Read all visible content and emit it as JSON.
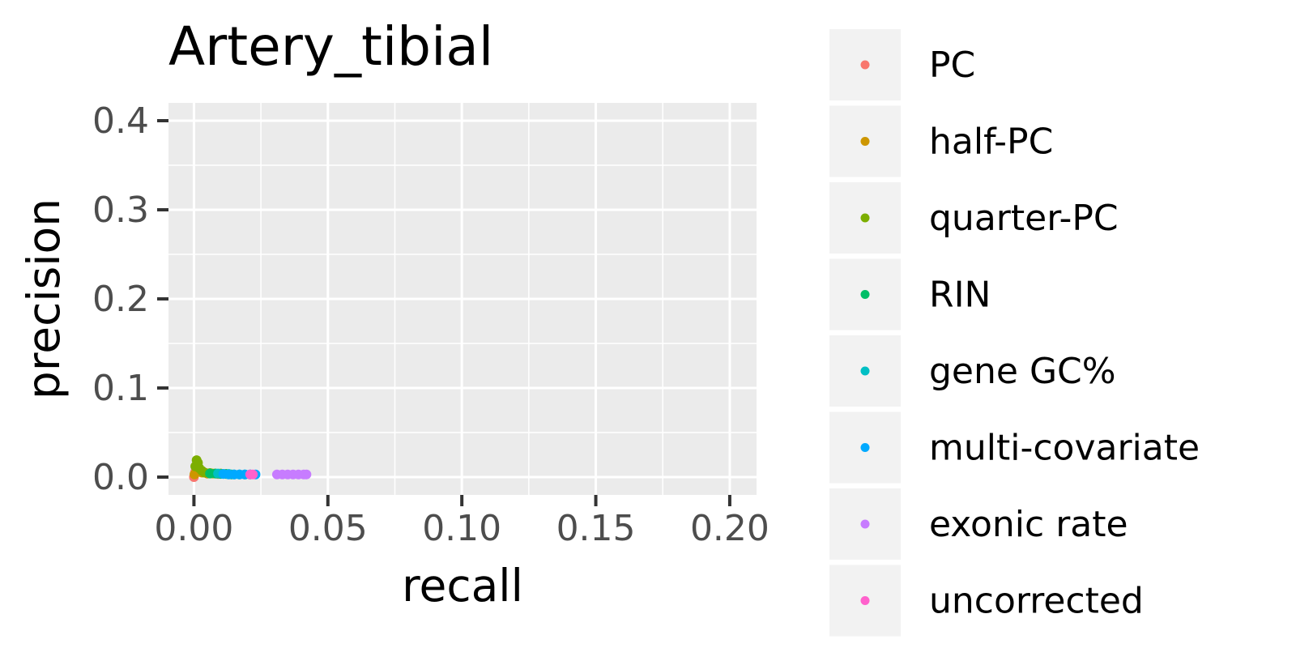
{
  "chart_data": {
    "type": "scatter",
    "title": "Artery_tibial",
    "xlabel": "recall",
    "ylabel": "precision",
    "xlim": [
      -0.0095,
      0.21
    ],
    "ylim": [
      -0.02,
      0.42
    ],
    "x_ticks": [
      0.0,
      0.05,
      0.1,
      0.15,
      0.2
    ],
    "x_tick_labels": [
      "0.00",
      "0.05",
      "0.10",
      "0.15",
      "0.20"
    ],
    "y_ticks": [
      0.0,
      0.1,
      0.2,
      0.3,
      0.4
    ],
    "y_tick_labels": [
      "0.0",
      "0.1",
      "0.2",
      "0.3",
      "0.4"
    ],
    "grid": true,
    "legend_position": "right",
    "series": [
      {
        "name": "PC",
        "color": "#F8766D",
        "points": [
          [
            0.0,
            0.0
          ],
          [
            0.0003,
            0.004
          ],
          [
            0.0005,
            0.006
          ],
          [
            0.0008,
            0.009
          ],
          [
            0.001,
            0.011
          ],
          [
            0.0015,
            0.009
          ],
          [
            0.002,
            0.007
          ],
          [
            0.003,
            0.006
          ],
          [
            0.004,
            0.005
          ],
          [
            0.005,
            0.004
          ]
        ]
      },
      {
        "name": "half-PC",
        "color": "#CD9600",
        "points": [
          [
            0.0002,
            0.003
          ],
          [
            0.001,
            0.007
          ],
          [
            0.002,
            0.006
          ],
          [
            0.003,
            0.005
          ],
          [
            0.005,
            0.004
          ],
          [
            0.007,
            0.004
          ],
          [
            0.009,
            0.0035
          ]
        ]
      },
      {
        "name": "quarter-PC",
        "color": "#7CAE00",
        "points": [
          [
            0.0005,
            0.012
          ],
          [
            0.001,
            0.019
          ],
          [
            0.0015,
            0.016
          ],
          [
            0.002,
            0.01
          ],
          [
            0.003,
            0.007
          ],
          [
            0.004,
            0.005
          ],
          [
            0.006,
            0.0045
          ],
          [
            0.008,
            0.004
          ],
          [
            0.01,
            0.004
          ],
          [
            0.012,
            0.0035
          ]
        ]
      },
      {
        "name": "RIN",
        "color": "#00BE67",
        "points": [
          [
            0.006,
            0.004
          ],
          [
            0.008,
            0.004
          ],
          [
            0.01,
            0.0035
          ],
          [
            0.012,
            0.0035
          ],
          [
            0.014,
            0.003
          ]
        ]
      },
      {
        "name": "gene GC%",
        "color": "#00BFC4",
        "points": [
          [
            0.009,
            0.004
          ],
          [
            0.011,
            0.0035
          ],
          [
            0.013,
            0.0035
          ],
          [
            0.015,
            0.003
          ],
          [
            0.017,
            0.003
          ],
          [
            0.019,
            0.003
          ],
          [
            0.021,
            0.003
          ]
        ]
      },
      {
        "name": "multi-covariate",
        "color": "#00A9FF",
        "points": [
          [
            0.011,
            0.0035
          ],
          [
            0.013,
            0.003
          ],
          [
            0.015,
            0.003
          ],
          [
            0.017,
            0.003
          ],
          [
            0.019,
            0.003
          ],
          [
            0.021,
            0.003
          ],
          [
            0.023,
            0.003
          ]
        ]
      },
      {
        "name": "exonic rate",
        "color": "#C77CFF",
        "points": [
          [
            0.031,
            0.003
          ],
          [
            0.033,
            0.003
          ],
          [
            0.035,
            0.003
          ],
          [
            0.037,
            0.003
          ],
          [
            0.039,
            0.003
          ],
          [
            0.041,
            0.003
          ],
          [
            0.042,
            0.003
          ]
        ]
      },
      {
        "name": "uncorrected",
        "color": "#FF61CC",
        "points": [
          [
            0.021,
            0.003
          ],
          [
            0.022,
            0.003
          ]
        ]
      }
    ]
  }
}
